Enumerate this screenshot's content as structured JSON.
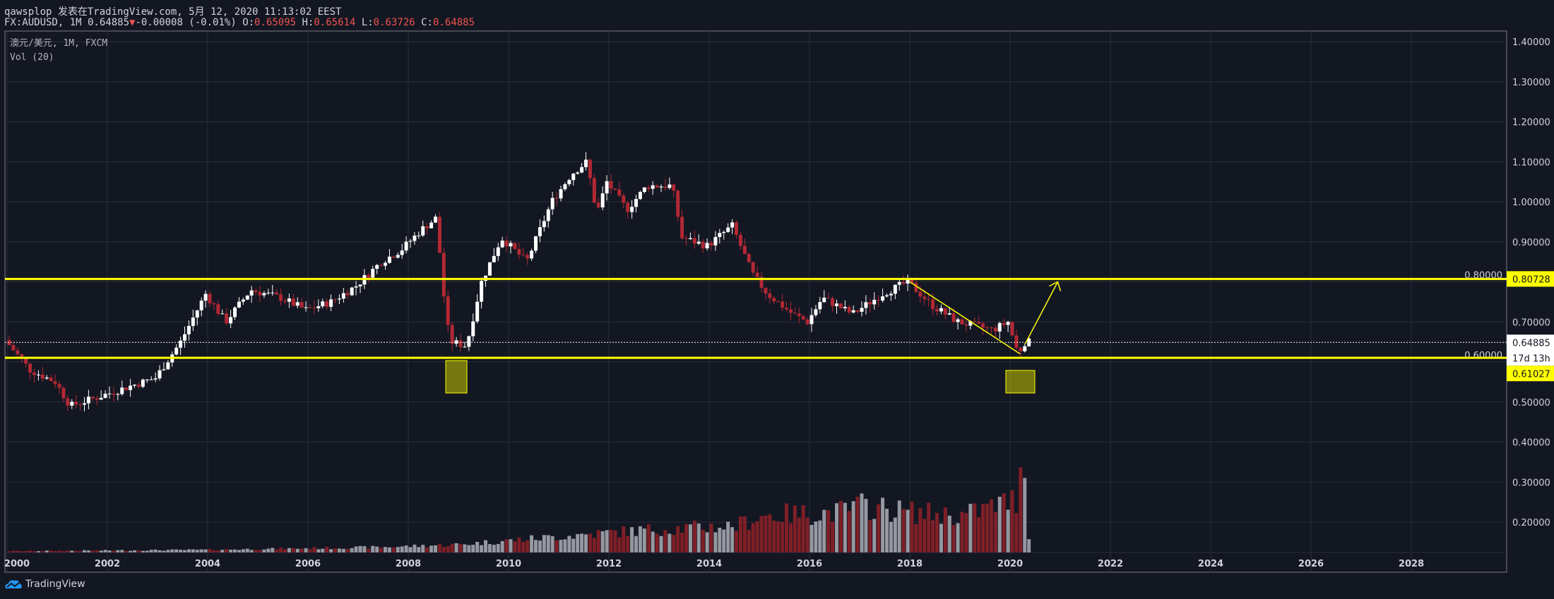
{
  "header": {
    "line1": "qawsplop 发表在TradingView.com, 5月 12, 2020 11:13:02 EEST",
    "symbol": "FX:AUDUSD, 1M 0.64885",
    "change": "-0.00008 (-0.01%)",
    "o_label": "O:",
    "o": "0.65095",
    "h_label": "H:",
    "h": "0.65614",
    "l_label": "L:",
    "l": "0.63726",
    "c_label": "C:",
    "c": "0.64885"
  },
  "legend": {
    "title": "澳元/美元, 1M, FXCM",
    "vol": "Vol (20)"
  },
  "brand": "TradingView",
  "colors": {
    "up": "#ffffff",
    "down": "#b22833",
    "line": "#ffff00",
    "bg": "#131722"
  },
  "chart_data": {
    "type": "candlestick",
    "price_ticks": [
      "1.40000",
      "1.30000",
      "1.20000",
      "1.10000",
      "1.00000",
      "0.90000",
      "0.80000",
      "0.70000",
      "0.60000",
      "0.50000",
      "0.40000",
      "0.30000",
      "0.20000"
    ],
    "year_ticks": [
      "2000",
      "2002",
      "2004",
      "2006",
      "2008",
      "2010",
      "2012",
      "2014",
      "2016",
      "2018",
      "2020",
      "2022",
      "2024",
      "2026",
      "2028"
    ],
    "ylim": [
      0.2,
      1.4
    ],
    "price_anchors": [
      [
        2000.0,
        0.655
      ],
      [
        2000.5,
        0.58
      ],
      [
        2001.0,
        0.55
      ],
      [
        2001.3,
        0.49
      ],
      [
        2001.8,
        0.51
      ],
      [
        2002.5,
        0.54
      ],
      [
        2003.0,
        0.56
      ],
      [
        2003.5,
        0.65
      ],
      [
        2004.0,
        0.77
      ],
      [
        2004.4,
        0.7
      ],
      [
        2004.9,
        0.78
      ],
      [
        2005.5,
        0.76
      ],
      [
        2006.0,
        0.73
      ],
      [
        2006.5,
        0.75
      ],
      [
        2007.0,
        0.79
      ],
      [
        2007.5,
        0.85
      ],
      [
        2007.9,
        0.88
      ],
      [
        2008.3,
        0.93
      ],
      [
        2008.6,
        0.96
      ],
      [
        2008.8,
        0.7
      ],
      [
        2008.9,
        0.65
      ],
      [
        2009.2,
        0.64
      ],
      [
        2009.5,
        0.8
      ],
      [
        2009.9,
        0.91
      ],
      [
        2010.4,
        0.85
      ],
      [
        2010.9,
        1.0
      ],
      [
        2011.3,
        1.07
      ],
      [
        2011.6,
        1.1
      ],
      [
        2011.8,
        0.97
      ],
      [
        2012.0,
        1.05
      ],
      [
        2012.4,
        0.98
      ],
      [
        2012.8,
        1.04
      ],
      [
        2013.3,
        1.04
      ],
      [
        2013.5,
        0.91
      ],
      [
        2014.0,
        0.89
      ],
      [
        2014.5,
        0.94
      ],
      [
        2014.9,
        0.82
      ],
      [
        2015.2,
        0.77
      ],
      [
        2015.7,
        0.72
      ],
      [
        2016.0,
        0.7
      ],
      [
        2016.3,
        0.76
      ],
      [
        2016.9,
        0.72
      ],
      [
        2017.5,
        0.77
      ],
      [
        2018.0,
        0.8
      ],
      [
        2018.5,
        0.74
      ],
      [
        2019.0,
        0.7
      ],
      [
        2019.7,
        0.68
      ],
      [
        2020.0,
        0.7
      ],
      [
        2020.2,
        0.62
      ],
      [
        2020.33,
        0.649
      ]
    ],
    "volume_anchors": [
      [
        2000,
        2
      ],
      [
        2004,
        4
      ],
      [
        2007.5,
        8
      ],
      [
        2009,
        12
      ],
      [
        2010,
        18
      ],
      [
        2012,
        30
      ],
      [
        2013,
        35
      ],
      [
        2014.5,
        40
      ],
      [
        2015,
        55
      ],
      [
        2016.5,
        60
      ],
      [
        2017,
        70
      ],
      [
        2018,
        60
      ],
      [
        2019,
        55
      ],
      [
        2020.1,
        80
      ],
      [
        2020.17,
        150
      ],
      [
        2020.25,
        110
      ],
      [
        2020.33,
        25
      ]
    ],
    "levels": [
      {
        "price": 0.80728,
        "label": "0.80728"
      },
      {
        "price": 0.61027,
        "label": "0.61027"
      }
    ],
    "last_price": {
      "price": 0.64885,
      "label": "0.64885",
      "countdown": "17d 13h"
    }
  }
}
